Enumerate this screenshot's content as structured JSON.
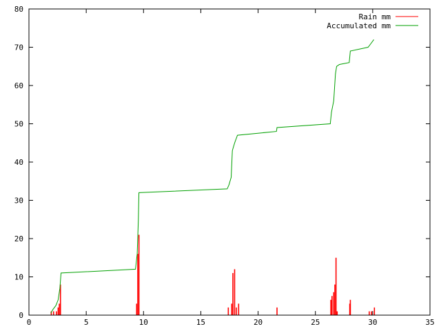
{
  "chart_data": {
    "type": "bar",
    "title": "",
    "xlabel": "",
    "ylabel": "",
    "xlim": [
      0,
      35
    ],
    "ylim": [
      0,
      80
    ],
    "x_ticks": [
      0,
      5,
      10,
      15,
      20,
      25,
      30,
      35
    ],
    "y_ticks": [
      0,
      10,
      20,
      30,
      40,
      50,
      60,
      70,
      80
    ],
    "grid": false,
    "legend_position": "top-right",
    "series": [
      {
        "name": "Rain mm",
        "kind": "impulse",
        "color": "#ff0000",
        "points": [
          {
            "x": 1.95,
            "y": 1
          },
          {
            "x": 2.15,
            "y": 1
          },
          {
            "x": 2.4,
            "y": 1
          },
          {
            "x": 2.55,
            "y": 2
          },
          {
            "x": 2.65,
            "y": 3
          },
          {
            "x": 2.75,
            "y": 8
          },
          {
            "x": 9.4,
            "y": 3
          },
          {
            "x": 9.5,
            "y": 16
          },
          {
            "x": 9.6,
            "y": 21
          },
          {
            "x": 17.4,
            "y": 2
          },
          {
            "x": 17.7,
            "y": 3
          },
          {
            "x": 17.8,
            "y": 11
          },
          {
            "x": 17.95,
            "y": 12
          },
          {
            "x": 18.1,
            "y": 2
          },
          {
            "x": 18.3,
            "y": 3
          },
          {
            "x": 21.65,
            "y": 2
          },
          {
            "x": 26.35,
            "y": 4
          },
          {
            "x": 26.45,
            "y": 5
          },
          {
            "x": 26.6,
            "y": 6
          },
          {
            "x": 26.7,
            "y": 8
          },
          {
            "x": 26.8,
            "y": 15
          },
          {
            "x": 26.9,
            "y": 1
          },
          {
            "x": 28.0,
            "y": 3
          },
          {
            "x": 28.05,
            "y": 4
          },
          {
            "x": 29.7,
            "y": 1
          },
          {
            "x": 29.9,
            "y": 1
          },
          {
            "x": 30.15,
            "y": 2
          }
        ]
      },
      {
        "name": "Accumulated mm",
        "kind": "line",
        "color": "#00a000",
        "points": [
          {
            "x": 1.9,
            "y": 0.5
          },
          {
            "x": 2.1,
            "y": 1.5
          },
          {
            "x": 2.35,
            "y": 2.5
          },
          {
            "x": 2.55,
            "y": 4
          },
          {
            "x": 2.7,
            "y": 7
          },
          {
            "x": 2.8,
            "y": 11
          },
          {
            "x": 9.3,
            "y": 12
          },
          {
            "x": 9.45,
            "y": 16
          },
          {
            "x": 9.55,
            "y": 25
          },
          {
            "x": 9.6,
            "y": 32
          },
          {
            "x": 17.3,
            "y": 33
          },
          {
            "x": 17.45,
            "y": 34
          },
          {
            "x": 17.65,
            "y": 36
          },
          {
            "x": 17.75,
            "y": 43
          },
          {
            "x": 17.95,
            "y": 45
          },
          {
            "x": 18.2,
            "y": 47
          },
          {
            "x": 21.6,
            "y": 48
          },
          {
            "x": 21.65,
            "y": 49
          },
          {
            "x": 26.3,
            "y": 50
          },
          {
            "x": 26.4,
            "y": 53
          },
          {
            "x": 26.6,
            "y": 56
          },
          {
            "x": 26.75,
            "y": 63
          },
          {
            "x": 26.85,
            "y": 65
          },
          {
            "x": 27.1,
            "y": 65.5
          },
          {
            "x": 27.95,
            "y": 66
          },
          {
            "x": 28.05,
            "y": 69
          },
          {
            "x": 29.6,
            "y": 70
          },
          {
            "x": 29.85,
            "y": 71
          },
          {
            "x": 30.1,
            "y": 72
          }
        ]
      }
    ]
  }
}
